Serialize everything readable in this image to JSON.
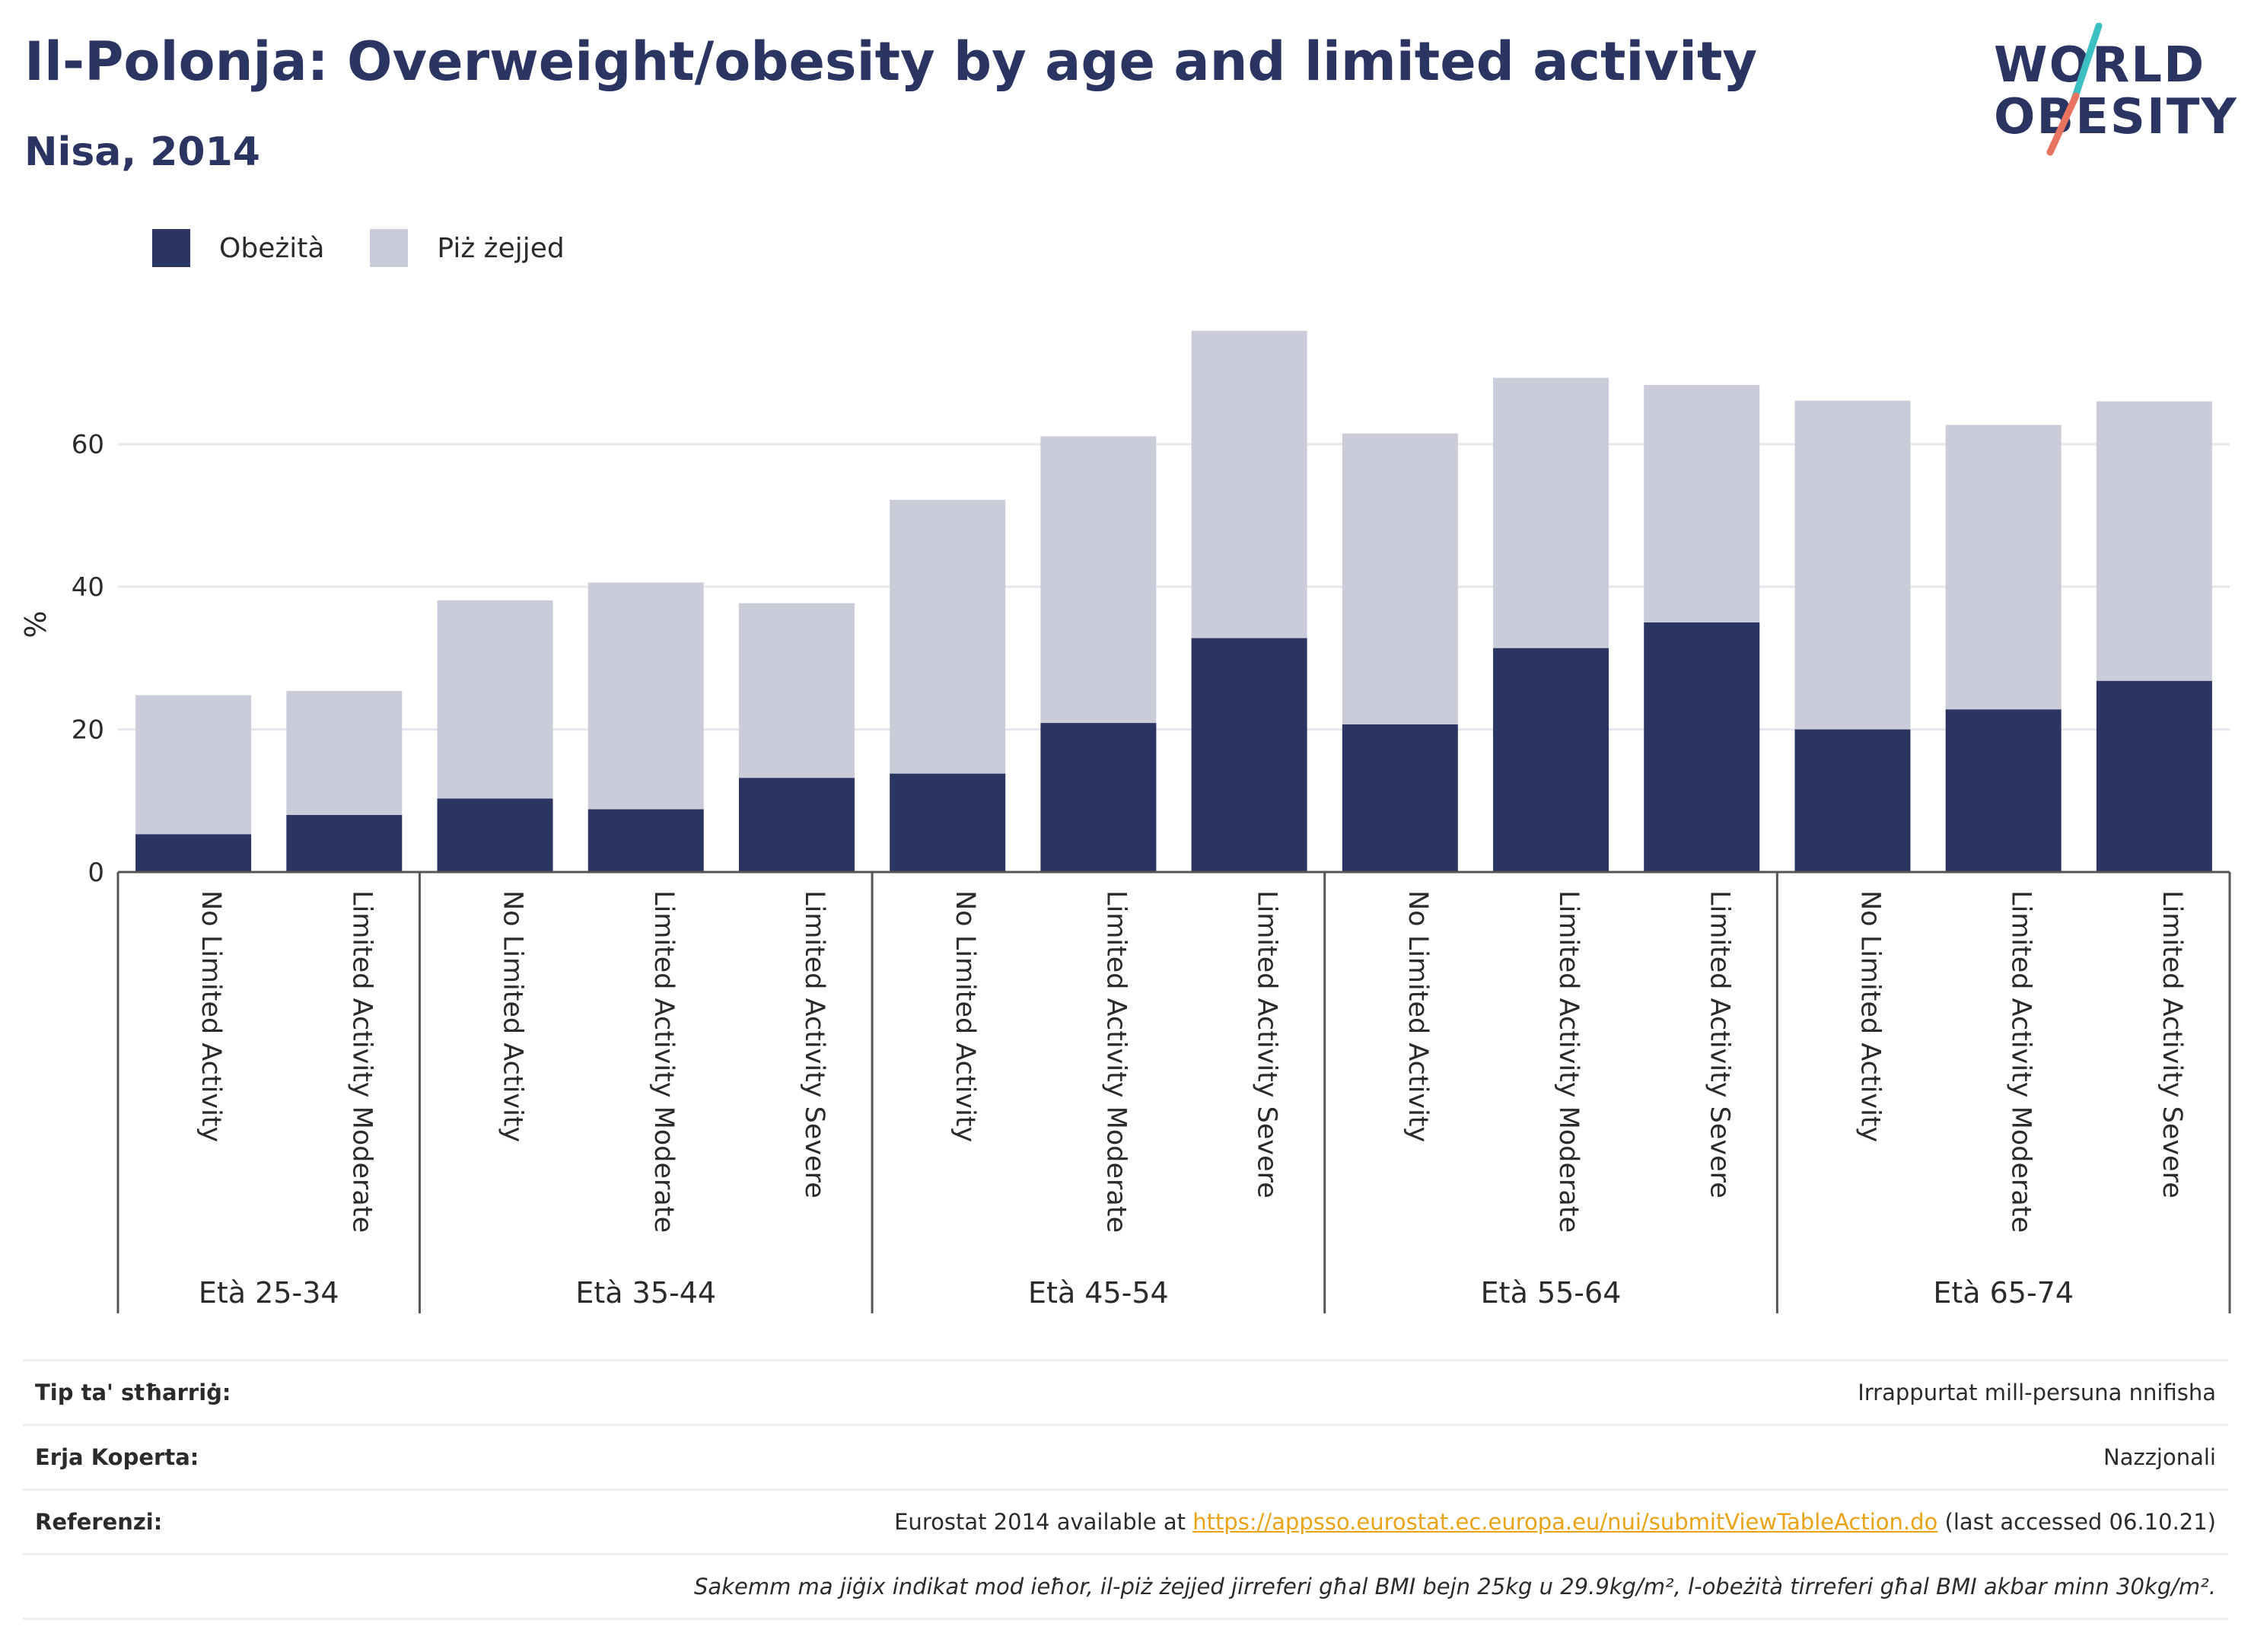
{
  "header": {
    "title": "Il-Polonja: Overweight/obesity by age and limited activity",
    "subtitle": "Nisa, 2014"
  },
  "logo": {
    "line1": "WORLD",
    "line2": "OBESITY",
    "accent_teal": "#3bbfc0",
    "accent_coral": "#e8735f"
  },
  "legend": [
    {
      "label": "Obeżità",
      "color": "#2a3562"
    },
    {
      "label": "Piż żejjed",
      "color": "#cbccd9"
    }
  ],
  "chart_data": {
    "type": "bar",
    "stacked": true,
    "ylabel": "%",
    "ylim": [
      0,
      78
    ],
    "yticks": [
      0,
      20,
      40,
      60
    ],
    "grid": true,
    "legend_position": "top-left",
    "groups": [
      {
        "label": "Età 25-34",
        "categories": [
          "No Limited Activity",
          "Limited Activity Moderate"
        ]
      },
      {
        "label": "Età 35-44",
        "categories": [
          "No Limited Activity",
          "Limited Activity Moderate",
          "Limited Activity Severe"
        ]
      },
      {
        "label": "Età 45-54",
        "categories": [
          "No Limited Activity",
          "Limited Activity Moderate",
          "Limited Activity Severe"
        ]
      },
      {
        "label": "Età 55-64",
        "categories": [
          "No Limited Activity",
          "Limited Activity Moderate",
          "Limited Activity Severe"
        ]
      },
      {
        "label": "Età 65-74",
        "categories": [
          "No Limited Activity",
          "Limited Activity Moderate",
          "Limited Activity Severe"
        ]
      }
    ],
    "series": [
      {
        "name": "Obeżità",
        "color": "#2a3562",
        "values": [
          5.3,
          8.0,
          10.3,
          8.8,
          13.2,
          13.8,
          20.9,
          32.8,
          20.7,
          31.4,
          35.0,
          20.0,
          22.8,
          26.8
        ]
      },
      {
        "name": "Piż żejjed",
        "color": "#cbccd9",
        "values": [
          19.5,
          17.4,
          27.8,
          31.8,
          24.5,
          38.4,
          40.2,
          43.1,
          40.8,
          37.9,
          33.3,
          46.1,
          39.9,
          39.2
        ]
      }
    ]
  },
  "info": {
    "rows": [
      {
        "key": "Tip ta' stħarriġ:",
        "value": "Irrappurtat mill-persuna nnifisha"
      },
      {
        "key": "Erja Koperta:",
        "value": "Nazzjonali"
      }
    ],
    "reference": {
      "key": "Referenzi:",
      "prefix": "Eurostat 2014 available at ",
      "link": "https://appsso.eurostat.ec.europa.eu/nui/submitViewTableAction.do",
      "suffix": " (last accessed 06.10.21)"
    },
    "note": "Sakemm ma jiġix indikat mod ieħor, il-piż żejjed jirreferi għal BMI bejn 25kg u 29.9kg/m², l-obeżità tirreferi għal BMI akbar minn 30kg/m²."
  }
}
